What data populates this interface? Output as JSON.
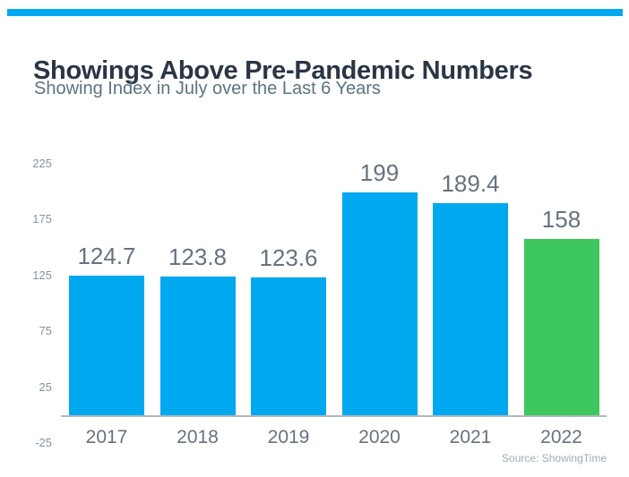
{
  "header": {
    "title": "Showings Above Pre-Pandemic Numbers",
    "subtitle": "Showing Index in July over the Last 6 Years"
  },
  "footer": {
    "source": "Source: ShowingTime"
  },
  "colors": {
    "accent_bar": "#00A8EF",
    "bar_blue": "#00A8EF",
    "bar_green": "#3EC75C",
    "title_text": "#2A3644",
    "subtitle_text": "#5B7482",
    "label_text": "#66737F",
    "tick_text": "#8593A4",
    "axis_line": "#B2B8BD",
    "source_text": "#A0ACB8"
  },
  "chart_data": {
    "type": "bar",
    "title": "Showings Above Pre-Pandemic Numbers",
    "subtitle": "Showing Index in July over the Last 6 Years",
    "categories": [
      "2017",
      "2018",
      "2019",
      "2020",
      "2021",
      "2022"
    ],
    "values": [
      124.7,
      123.8,
      123.6,
      199,
      189.4,
      158
    ],
    "value_labels": [
      "124.7",
      "123.8",
      "123.6",
      "199",
      "189.4",
      "158"
    ],
    "bar_colors": [
      "blue",
      "blue",
      "blue",
      "blue",
      "blue",
      "green"
    ],
    "y_ticks": [
      225,
      175,
      125,
      75,
      25,
      -25
    ],
    "ylim": [
      -25,
      240
    ],
    "grid": false,
    "legend": false,
    "source": "Source: ShowingTime"
  }
}
